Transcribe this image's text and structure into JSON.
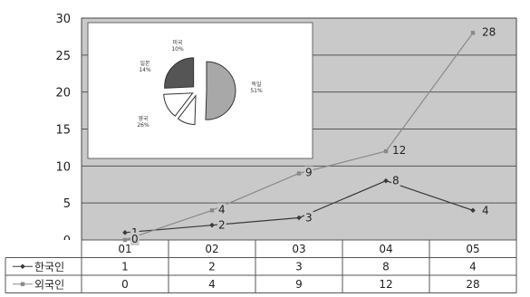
{
  "chart_data": {
    "type": "line",
    "categories": [
      "01",
      "02",
      "03",
      "04",
      "05"
    ],
    "ylim": [
      0,
      30
    ],
    "yticks": [
      0,
      5,
      10,
      15,
      20,
      25,
      30
    ],
    "grid": true,
    "legend": "data-table-left",
    "series": [
      {
        "name": "한국인",
        "values": [
          1,
          2,
          3,
          8,
          4
        ],
        "color": "#3a3a3a",
        "marker": "diamond"
      },
      {
        "name": "외국인",
        "values": [
          0,
          4,
          9,
          12,
          28
        ],
        "color": "#8a8a8a",
        "marker": "square"
      }
    ],
    "inset_pie": {
      "type": "pie",
      "slices": [
        {
          "label": "독일",
          "value": 51,
          "pct_text": "51%",
          "fill": "#a8a8a8"
        },
        {
          "label": "미국",
          "value": 10,
          "pct_text": "10%",
          "fill": "#ffffff"
        },
        {
          "label": "일본",
          "value": 14,
          "pct_text": "14%",
          "fill": "#ffffff"
        },
        {
          "label": "영국",
          "value": 26,
          "pct_text": "26%",
          "fill": "#555555"
        }
      ]
    }
  }
}
